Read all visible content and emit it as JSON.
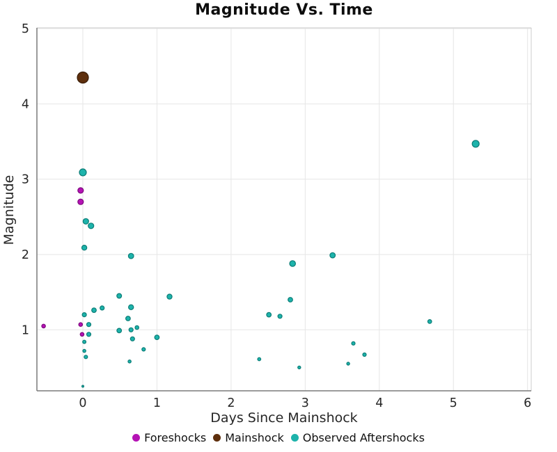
{
  "chart_data": {
    "type": "scatter",
    "title": "Magnitude Vs. Time",
    "xlabel": "Days Since Mainshock",
    "ylabel": "Magnitude",
    "xlim": [
      -0.62,
      6.05
    ],
    "ylim": [
      0.19,
      5.01
    ],
    "x_ticks": [
      0,
      1,
      2,
      3,
      4,
      5,
      6
    ],
    "y_ticks": [
      1,
      2,
      3,
      4,
      5
    ],
    "grid": true,
    "legend_position": "bottom-center",
    "series": [
      {
        "name": "Foreshocks",
        "color": "#b513b5",
        "edge_color": "#7c0a7c",
        "points": [
          {
            "x": -0.53,
            "y": 1.05,
            "r": 2.7
          },
          {
            "x": -0.03,
            "y": 2.85,
            "r": 4.0
          },
          {
            "x": -0.03,
            "y": 2.7,
            "r": 4.0
          },
          {
            "x": -0.03,
            "y": 1.07,
            "r": 2.7
          },
          {
            "x": -0.01,
            "y": 0.94,
            "r": 2.7
          }
        ]
      },
      {
        "name": "Mainshock",
        "color": "#5e2f0d",
        "edge_color": "#3a1d07",
        "points": [
          {
            "x": 0.0,
            "y": 4.35,
            "r": 8.0
          }
        ]
      },
      {
        "name": "Observed Aftershocks",
        "color": "#1db3ab",
        "edge_color": "#0c7c76",
        "points": [
          {
            "x": 0.0,
            "y": 3.09,
            "r": 5.0
          },
          {
            "x": 0.04,
            "y": 2.44,
            "r": 4.0
          },
          {
            "x": 0.11,
            "y": 2.38,
            "r": 4.0
          },
          {
            "x": 0.02,
            "y": 2.09,
            "r": 3.6
          },
          {
            "x": 0.02,
            "y": 1.2,
            "r": 3.0
          },
          {
            "x": 0.08,
            "y": 1.07,
            "r": 3.0
          },
          {
            "x": 0.08,
            "y": 0.94,
            "r": 3.0
          },
          {
            "x": 0.02,
            "y": 0.84,
            "r": 2.4
          },
          {
            "x": 0.02,
            "y": 0.72,
            "r": 2.2
          },
          {
            "x": 0.04,
            "y": 0.64,
            "r": 2.5
          },
          {
            "x": 0.0,
            "y": 0.25,
            "r": 1.4
          },
          {
            "x": 0.15,
            "y": 1.26,
            "r": 3.3
          },
          {
            "x": 0.26,
            "y": 1.29,
            "r": 3.0
          },
          {
            "x": 0.49,
            "y": 1.45,
            "r": 3.4
          },
          {
            "x": 0.49,
            "y": 0.99,
            "r": 3.3
          },
          {
            "x": 0.61,
            "y": 1.15,
            "r": 3.3
          },
          {
            "x": 0.63,
            "y": 0.58,
            "r": 2.2
          },
          {
            "x": 0.65,
            "y": 1.98,
            "r": 3.8
          },
          {
            "x": 0.65,
            "y": 1.3,
            "r": 3.6
          },
          {
            "x": 0.65,
            "y": 1.0,
            "r": 3.0
          },
          {
            "x": 0.67,
            "y": 0.88,
            "r": 3.0
          },
          {
            "x": 0.73,
            "y": 1.03,
            "r": 2.7
          },
          {
            "x": 0.82,
            "y": 0.74,
            "r": 2.5
          },
          {
            "x": 1.0,
            "y": 0.9,
            "r": 3.3
          },
          {
            "x": 1.17,
            "y": 1.44,
            "r": 3.6
          },
          {
            "x": 2.38,
            "y": 0.61,
            "r": 2.3
          },
          {
            "x": 2.51,
            "y": 1.2,
            "r": 3.3
          },
          {
            "x": 2.66,
            "y": 1.18,
            "r": 3.0
          },
          {
            "x": 2.8,
            "y": 1.4,
            "r": 3.3
          },
          {
            "x": 2.83,
            "y": 1.88,
            "r": 4.2
          },
          {
            "x": 2.92,
            "y": 0.5,
            "r": 2.1
          },
          {
            "x": 3.37,
            "y": 1.99,
            "r": 3.8
          },
          {
            "x": 3.58,
            "y": 0.55,
            "r": 2.1
          },
          {
            "x": 3.65,
            "y": 0.82,
            "r": 2.5
          },
          {
            "x": 3.8,
            "y": 0.67,
            "r": 2.5
          },
          {
            "x": 4.68,
            "y": 1.11,
            "r": 2.8
          },
          {
            "x": 5.3,
            "y": 3.47,
            "r": 5.0
          }
        ]
      }
    ],
    "colors": {
      "grid": "#e6e6e6",
      "axis": "#7a7a7a",
      "frame": "#cccccc",
      "tick_text": "#262626"
    }
  }
}
